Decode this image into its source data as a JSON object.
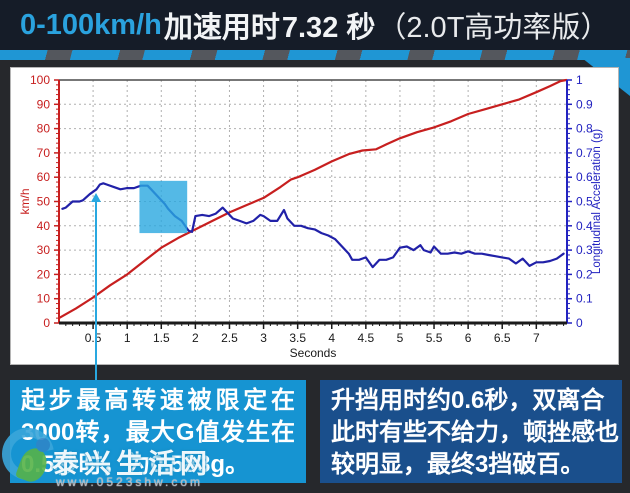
{
  "header": {
    "range": "0-100km/h",
    "prefix": "加速用时",
    "time": "7.32 秒",
    "variant": "（2.0T高功率版）",
    "accent_color": "#2aa2de",
    "bg_color": "#151c28"
  },
  "chart_data": {
    "type": "line",
    "xlabel": "Seconds",
    "ylabel_left": "km/h",
    "ylabel_right": "Longitudinal Acceleration (g)",
    "x_range": [
      0,
      7.45
    ],
    "x_ticks": [
      0.5,
      1,
      1.5,
      2,
      2.5,
      3,
      3.5,
      4,
      4.5,
      5,
      5.5,
      6,
      6.5,
      7
    ],
    "x_minor_step": 0.1,
    "y_left_range": [
      0,
      100
    ],
    "y_left_ticks": [
      0,
      10,
      20,
      30,
      40,
      50,
      60,
      70,
      80,
      90,
      100
    ],
    "y_left_minor_step": 2,
    "y_right_range": [
      0,
      1
    ],
    "y_right_ticks": [
      0,
      0.1,
      0.2,
      0.3,
      0.4,
      0.5,
      0.6,
      0.7,
      0.8,
      0.9,
      1
    ],
    "y_right_minor_step": 0.02,
    "grid": true,
    "axis_colors": {
      "left": "#c71f1f",
      "right": "#2222c0",
      "bottom": "#1a1a1a"
    },
    "series": [
      {
        "name": "speed-kmh",
        "axis": "left",
        "color": "#c71f1f",
        "points": [
          [
            0,
            2
          ],
          [
            0.25,
            6
          ],
          [
            0.5,
            10.5
          ],
          [
            0.75,
            15.5
          ],
          [
            1,
            20
          ],
          [
            1.25,
            25.5
          ],
          [
            1.5,
            31
          ],
          [
            1.75,
            35
          ],
          [
            2,
            38.5
          ],
          [
            2.25,
            42
          ],
          [
            2.5,
            45.5
          ],
          [
            2.75,
            48.5
          ],
          [
            3,
            51.5
          ],
          [
            3.25,
            56
          ],
          [
            3.4,
            59
          ],
          [
            3.5,
            60
          ],
          [
            3.75,
            63
          ],
          [
            4,
            66.5
          ],
          [
            4.25,
            69.5
          ],
          [
            4.45,
            71
          ],
          [
            4.65,
            71.5
          ],
          [
            4.8,
            73.5
          ],
          [
            5,
            76
          ],
          [
            5.25,
            78.5
          ],
          [
            5.5,
            80.5
          ],
          [
            5.75,
            83
          ],
          [
            6,
            86
          ],
          [
            6.25,
            88
          ],
          [
            6.5,
            90
          ],
          [
            6.75,
            92
          ],
          [
            7,
            95
          ],
          [
            7.2,
            97.5
          ],
          [
            7.35,
            99.5
          ],
          [
            7.44,
            100
          ]
        ]
      },
      {
        "name": "longitudinal-acceleration-g",
        "axis": "right",
        "color": "#2121a8",
        "points": [
          [
            0.05,
            0.47
          ],
          [
            0.1,
            0.475
          ],
          [
            0.2,
            0.5
          ],
          [
            0.3,
            0.5
          ],
          [
            0.35,
            0.505
          ],
          [
            0.45,
            0.53
          ],
          [
            0.55,
            0.55
          ],
          [
            0.6,
            0.57
          ],
          [
            0.65,
            0.575
          ],
          [
            0.7,
            0.57
          ],
          [
            0.8,
            0.56
          ],
          [
            0.9,
            0.55
          ],
          [
            1,
            0.555
          ],
          [
            1.1,
            0.555
          ],
          [
            1.2,
            0.565
          ],
          [
            1.3,
            0.565
          ],
          [
            1.35,
            0.55
          ],
          [
            1.45,
            0.52
          ],
          [
            1.55,
            0.49
          ],
          [
            1.6,
            0.47
          ],
          [
            1.7,
            0.44
          ],
          [
            1.8,
            0.42
          ],
          [
            1.9,
            0.38
          ],
          [
            1.95,
            0.375
          ],
          [
            2,
            0.44
          ],
          [
            2.1,
            0.445
          ],
          [
            2.2,
            0.44
          ],
          [
            2.3,
            0.45
          ],
          [
            2.4,
            0.475
          ],
          [
            2.45,
            0.46
          ],
          [
            2.55,
            0.43
          ],
          [
            2.65,
            0.42
          ],
          [
            2.75,
            0.41
          ],
          [
            2.85,
            0.42
          ],
          [
            2.95,
            0.445
          ],
          [
            3,
            0.44
          ],
          [
            3.1,
            0.42
          ],
          [
            3.2,
            0.42
          ],
          [
            3.3,
            0.465
          ],
          [
            3.35,
            0.43
          ],
          [
            3.45,
            0.4
          ],
          [
            3.55,
            0.4
          ],
          [
            3.65,
            0.39
          ],
          [
            3.75,
            0.385
          ],
          [
            3.85,
            0.37
          ],
          [
            3.95,
            0.36
          ],
          [
            4.05,
            0.345
          ],
          [
            4.15,
            0.315
          ],
          [
            4.25,
            0.285
          ],
          [
            4.3,
            0.26
          ],
          [
            4.4,
            0.26
          ],
          [
            4.5,
            0.27
          ],
          [
            4.6,
            0.23
          ],
          [
            4.7,
            0.26
          ],
          [
            4.8,
            0.26
          ],
          [
            4.9,
            0.27
          ],
          [
            5,
            0.31
          ],
          [
            5.1,
            0.315
          ],
          [
            5.2,
            0.3
          ],
          [
            5.3,
            0.32
          ],
          [
            5.35,
            0.3
          ],
          [
            5.45,
            0.29
          ],
          [
            5.5,
            0.315
          ],
          [
            5.6,
            0.285
          ],
          [
            5.7,
            0.285
          ],
          [
            5.8,
            0.29
          ],
          [
            5.9,
            0.285
          ],
          [
            6,
            0.295
          ],
          [
            6.1,
            0.285
          ],
          [
            6.2,
            0.285
          ],
          [
            6.3,
            0.28
          ],
          [
            6.4,
            0.275
          ],
          [
            6.5,
            0.27
          ],
          [
            6.6,
            0.265
          ],
          [
            6.7,
            0.245
          ],
          [
            6.8,
            0.265
          ],
          [
            6.9,
            0.235
          ],
          [
            7,
            0.25
          ],
          [
            7.1,
            0.25
          ],
          [
            7.2,
            0.255
          ],
          [
            7.3,
            0.265
          ],
          [
            7.4,
            0.285
          ]
        ]
      }
    ],
    "highlight_box": {
      "x0": 1.18,
      "x1": 1.88,
      "y0": 0.37,
      "y1": 0.585,
      "axis": "right",
      "color": "#29a8e0",
      "opacity": 0.8
    },
    "annotation_arrow": {
      "x": 0.55,
      "color": "#29a8e0"
    }
  },
  "callouts": {
    "left": {
      "bg": "#1694d2",
      "lines": [
        "起步最高转速被限定在",
        "3000转，最大G值发生在",
        "0.5秒时，为0.583g。"
      ]
    },
    "right": {
      "bg": "#1a4f8c",
      "lines": [
        "升挡用时约0.6秒，双离合",
        "此时有些不给力，顿挫感也",
        "较明显，最终3挡破百。"
      ]
    }
  },
  "watermark": {
    "site": "泰兴生活网",
    "url": "www.0523shw.com"
  }
}
